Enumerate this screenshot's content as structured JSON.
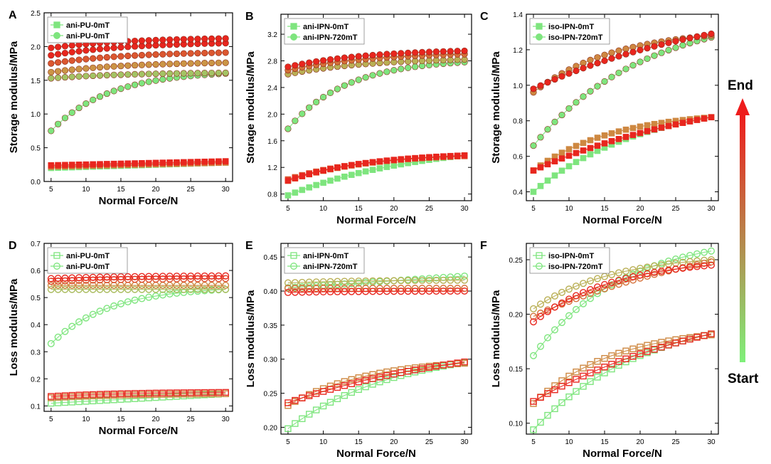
{
  "figure": {
    "scale": {
      "end_label": "End",
      "start_label": "Start",
      "color_start": "#7ff07a",
      "color_end": "#ee1c1c"
    },
    "series_colors": {
      "green": "#7ee57e",
      "olive": "#c8a14a",
      "red": "#e8261e"
    }
  },
  "chart_data": [
    {
      "panel": "A",
      "type": "scatter",
      "marker": "filled",
      "xlabel": "Normal Force/N",
      "ylabel": "Storage modulus/MPa",
      "xlim": [
        4,
        31
      ],
      "ylim": [
        0.0,
        2.5
      ],
      "xticks": [
        5,
        10,
        15,
        20,
        25,
        30
      ],
      "yticks": [
        "0.0",
        "0.5",
        "1.0",
        "1.5",
        "2.0",
        "2.5"
      ],
      "legend": [
        "ani-PU-0mT",
        "ani-PU-0mT"
      ],
      "series": [
        {
          "name": "ani-PU-0mT",
          "marker": "square",
          "start": 0.2,
          "end": 0.28,
          "curvature": 1,
          "cycles": [
            0.0,
            0.7,
            1.0
          ],
          "spread": 0.02
        },
        {
          "name": "ani-PU-0mT",
          "marker": "circle",
          "start": 0.75,
          "end": 1.6,
          "curvature": 3,
          "cycles": [
            0.0,
            0.25,
            0.55,
            0.8,
            1.0
          ],
          "base": [
            1.53,
            1.62,
            1.75,
            1.87,
            1.98
          ],
          "rise": [
            0.08,
            0.14,
            0.16,
            0.18,
            0.14
          ]
        }
      ]
    },
    {
      "panel": "B",
      "type": "scatter",
      "marker": "filled",
      "xlabel": "Normal Force/N",
      "ylabel": "Storage modulus/MPa",
      "xlim": [
        4,
        31
      ],
      "ylim": [
        0.7,
        3.5
      ],
      "xticks": [
        5,
        10,
        15,
        20,
        25,
        30
      ],
      "yticks": [
        "0.8",
        "1.2",
        "1.6",
        "2.0",
        "2.4",
        "2.8",
        "3.2"
      ],
      "legend": [
        "ani-IPN-0mT",
        "ani-IPN-720mT"
      ],
      "series": [
        {
          "name": "ani-IPN-0mT",
          "marker": "square",
          "start": 0.78,
          "end": 1.38,
          "curvature": 1.3,
          "cycles": [
            0.0,
            0.5,
            0.8,
            1.0
          ],
          "base": [
            1.0,
            1.02,
            1.0
          ],
          "rise": [
            0.37,
            0.35,
            0.38
          ]
        },
        {
          "name": "ani-IPN-720mT",
          "marker": "circle",
          "start": 1.78,
          "end": 2.78,
          "curvature": 3,
          "cycles": [
            0.0,
            0.4,
            0.7,
            1.0
          ],
          "base": [
            2.6,
            2.66,
            2.71
          ],
          "rise": [
            0.22,
            0.24,
            0.24
          ]
        }
      ]
    },
    {
      "panel": "C",
      "type": "scatter",
      "marker": "filled",
      "xlabel": "Normal Force/N",
      "ylabel": "Storage modulus/MPa",
      "xlim": [
        4,
        31
      ],
      "ylim": [
        0.35,
        1.4
      ],
      "xticks": [
        5,
        10,
        15,
        20,
        25,
        30
      ],
      "yticks": [
        "0.4",
        "0.6",
        "0.8",
        "1.0",
        "1.2",
        "1.4"
      ],
      "legend": [
        "iso-IPN-0mT",
        "iso-IPN-720mT"
      ],
      "series": [
        {
          "name": "iso-IPN-0mT",
          "marker": "square",
          "start": 0.4,
          "end": 0.82,
          "curvature": 1.6,
          "cycles": [
            0.0,
            0.6,
            1.0
          ],
          "base": [
            0.52,
            0.52
          ],
          "rise": [
            0.3,
            0.3
          ],
          "hysteresis": true
        },
        {
          "name": "iso-IPN-720mT",
          "marker": "circle",
          "start": 0.66,
          "end": 1.27,
          "curvature": 1.6,
          "cycles": [
            0.0,
            0.6,
            1.0
          ],
          "base": [
            0.96,
            0.98
          ],
          "rise": [
            0.32,
            0.31
          ],
          "hysteresis": true
        }
      ]
    },
    {
      "panel": "D",
      "type": "scatter",
      "marker": "open",
      "xlabel": "Normal Force/N",
      "ylabel": "Loss modulus/MPa",
      "xlim": [
        4,
        31
      ],
      "ylim": [
        0.08,
        0.7
      ],
      "xticks": [
        5,
        10,
        15,
        20,
        25,
        30
      ],
      "yticks": [
        "0.1",
        "0.2",
        "0.3",
        "0.4",
        "0.5",
        "0.6",
        "0.7"
      ],
      "legend": [
        "ani-PU-0mT",
        "ani-PU-0mT"
      ],
      "series": [
        {
          "name": "ani-PU-0mT",
          "marker": "square",
          "start": 0.11,
          "end": 0.145,
          "curvature": 1,
          "cycles": [
            0.0,
            0.6,
            1.0
          ],
          "base": [
            0.13,
            0.135
          ],
          "rise": [
            0.015,
            0.015
          ]
        },
        {
          "name": "ani-PU-0mT",
          "marker": "circle",
          "start": 0.33,
          "end": 0.53,
          "curvature": 3,
          "cycles": [
            0.0,
            0.3,
            0.6,
            0.85,
            1.0
          ],
          "base": [
            0.53,
            0.545,
            0.56,
            0.57
          ],
          "rise": [
            0.0,
            0.0,
            0.01,
            0.01
          ]
        }
      ]
    },
    {
      "panel": "E",
      "type": "scatter",
      "marker": "open",
      "xlabel": "Normal Force/N",
      "ylabel": "Loss modulus/MPa",
      "xlim": [
        4,
        31
      ],
      "ylim": [
        0.19,
        0.47
      ],
      "xticks": [
        5,
        10,
        15,
        20,
        25,
        30
      ],
      "yticks": [
        "0.20",
        "0.25",
        "0.30",
        "0.35",
        "0.40",
        "0.45"
      ],
      "legend": [
        "ani-IPN-0mT",
        "ani-IPN-720mT"
      ],
      "series": [
        {
          "name": "ani-IPN-0mT",
          "marker": "square",
          "start": 0.198,
          "end": 0.295,
          "curvature": 1.6,
          "cycles": [
            0.0,
            0.6,
            1.0
          ],
          "base": [
            0.232,
            0.236
          ],
          "rise": [
            0.062,
            0.06
          ],
          "hysteresis": true
        },
        {
          "name": "ani-IPN-720mT",
          "marker": "circle",
          "start": 0.405,
          "end": 0.422,
          "curvature": 1,
          "cycles": [
            0.0,
            0.4,
            0.7,
            1.0
          ],
          "base": [
            0.412,
            0.404,
            0.398
          ],
          "rise": [
            0.004,
            0.0,
            0.002
          ]
        }
      ]
    },
    {
      "panel": "F",
      "type": "scatter",
      "marker": "open",
      "xlabel": "Normal Force/N",
      "ylabel": "Loss modulus/MPa",
      "xlim": [
        4,
        31
      ],
      "ylim": [
        0.09,
        0.265
      ],
      "xticks": [
        5,
        10,
        15,
        20,
        25,
        30
      ],
      "yticks": [
        "0.10",
        "0.15",
        "0.20",
        "0.25"
      ],
      "legend": [
        "iso-IPN-0mT",
        "iso-IPN-720mT"
      ],
      "series": [
        {
          "name": "iso-IPN-0mT",
          "marker": "square",
          "start": 0.094,
          "end": 0.182,
          "curvature": 1.6,
          "cycles": [
            0.0,
            0.6,
            1.0
          ],
          "base": [
            0.118,
            0.12
          ],
          "rise": [
            0.063,
            0.062
          ],
          "hysteresis": true
        },
        {
          "name": "iso-IPN-720mT",
          "marker": "circle",
          "start": 0.162,
          "end": 0.258,
          "curvature": 2,
          "cycles": [
            0.0,
            0.4,
            0.7,
            1.0
          ],
          "base": [
            0.205,
            0.198,
            0.193
          ],
          "rise": [
            0.045,
            0.05,
            0.052
          ],
          "hysteresis": true
        }
      ]
    }
  ]
}
